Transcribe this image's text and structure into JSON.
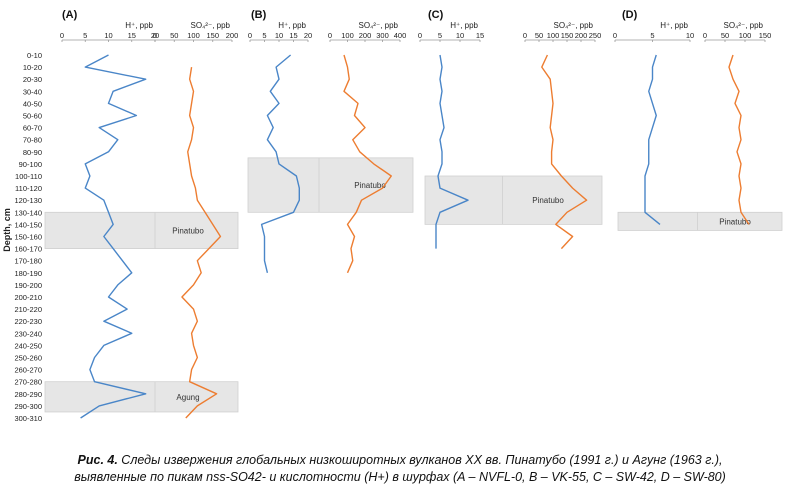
{
  "depth_axis": {
    "label": "Depth, cm",
    "ticks": [
      "0-10",
      "10-20",
      "20-30",
      "30-40",
      "40-50",
      "50-60",
      "60-70",
      "70-80",
      "80-90",
      "90-100",
      "100-110",
      "110-120",
      "120-130",
      "130-140",
      "140-150",
      "150-160",
      "160-170",
      "170-180",
      "180-190",
      "190-200",
      "200-210",
      "210-220",
      "220-230",
      "230-240",
      "240-250",
      "250-260",
      "260-270",
      "270-280",
      "280-290",
      "290-300",
      "300-310"
    ]
  },
  "colors": {
    "h_series": "#4a86c8",
    "so4_series": "#ed7d31",
    "band": "#e6e6e6",
    "axis": "#9a9a9a"
  },
  "caption": {
    "lead": "Рис. 4.",
    "line1_rest": " Следы извержения глобальных низкоширотных вулканов XX вв. Пинатубо (1991 г.) и Агунг (1963 г.),",
    "line2": "выявленные по пикам nss-SO42- и кислотности (H+) в шурфах (A – NVFL-0, B – VK-55, C – SW-42, D – SW-80)"
  },
  "chart_data": [
    {
      "panel": "(A)",
      "type": "line",
      "h": {
        "xlabel": "H⁺, ppb",
        "xlim": [
          0,
          20
        ],
        "ticks": [
          0,
          5,
          10,
          15,
          20
        ],
        "depth_index": [
          0,
          1,
          2,
          3,
          4,
          5,
          6,
          7,
          8,
          9,
          10,
          11,
          12,
          13,
          14,
          15,
          16,
          17,
          18,
          19,
          20,
          21,
          22,
          23,
          24,
          25,
          26,
          27,
          28,
          29,
          30
        ],
        "values": [
          10,
          5,
          18,
          11,
          10,
          16,
          8,
          12,
          10,
          5,
          6,
          5,
          9,
          10,
          11,
          9,
          11,
          13,
          15,
          12,
          10,
          14,
          9,
          15,
          9,
          7,
          6,
          7,
          18,
          8,
          4
        ]
      },
      "so4": {
        "xlabel": "SO₄²⁻, ppb",
        "xlim": [
          0,
          200
        ],
        "ticks": [
          0,
          50,
          100,
          150,
          200
        ],
        "depth_index": [
          1,
          2,
          3,
          4,
          5,
          6,
          7,
          8,
          9,
          10,
          11,
          12,
          13,
          14,
          15,
          16,
          17,
          18,
          19,
          20,
          21,
          22,
          23,
          24,
          25,
          26,
          27,
          28,
          29,
          30
        ],
        "values": [
          95,
          90,
          100,
          95,
          90,
          100,
          95,
          85,
          90,
          95,
          105,
          110,
          130,
          150,
          170,
          140,
          110,
          120,
          100,
          70,
          100,
          110,
          95,
          100,
          110,
          95,
          90,
          160,
          110,
          80
        ]
      },
      "bands": [
        {
          "label": "Pinatubo",
          "from": 13,
          "to": 16
        },
        {
          "label": "Agung",
          "from": 27,
          "to": 29.5
        }
      ]
    },
    {
      "panel": "(B)",
      "type": "line",
      "h": {
        "xlabel": "H⁺, ppb",
        "xlim": [
          0,
          20
        ],
        "ticks": [
          0,
          5,
          10,
          15,
          20
        ],
        "depth_index": [
          0,
          1,
          2,
          3,
          4,
          5,
          6,
          7,
          8,
          9,
          10,
          11,
          12,
          13,
          14,
          15,
          16,
          17,
          18
        ],
        "values": [
          14,
          9,
          10,
          7,
          10,
          6,
          8,
          6,
          9,
          10,
          16,
          17,
          17,
          15,
          4,
          5,
          5,
          5,
          6
        ]
      },
      "so4": {
        "xlabel": "SO₄²⁻, ppb",
        "xlim": [
          0,
          400
        ],
        "ticks": [
          0,
          100,
          200,
          300,
          400
        ],
        "depth_index": [
          0,
          1,
          2,
          3,
          4,
          5,
          6,
          7,
          8,
          9,
          10,
          11,
          12,
          13,
          14,
          15,
          16,
          17,
          18
        ],
        "values": [
          80,
          100,
          110,
          80,
          160,
          140,
          200,
          130,
          170,
          250,
          350,
          300,
          180,
          150,
          100,
          140,
          120,
          130,
          100
        ]
      },
      "bands": [
        {
          "label": "Pinatubo",
          "from": 8.5,
          "to": 13
        }
      ]
    },
    {
      "panel": "(C)",
      "type": "line",
      "h": {
        "xlabel": "H⁺, ppb",
        "xlim": [
          0,
          15
        ],
        "ticks": [
          0,
          5,
          10,
          15
        ],
        "depth_index": [
          0,
          1,
          2,
          3,
          4,
          5,
          6,
          7,
          8,
          9,
          10,
          11,
          12,
          13,
          14,
          15,
          16
        ],
        "values": [
          5,
          5.5,
          5,
          5.5,
          5,
          5.5,
          6,
          5,
          5.5,
          5.5,
          4.5,
          5,
          12,
          5,
          4,
          4,
          4
        ]
      },
      "so4": {
        "xlabel": "SO₄²⁻, ppb",
        "xlim": [
          0,
          250
        ],
        "ticks": [
          0,
          50,
          100,
          150,
          200,
          250
        ],
        "depth_index": [
          0,
          1,
          2,
          3,
          4,
          5,
          6,
          7,
          8,
          9,
          10,
          11,
          12,
          13,
          14,
          15,
          16
        ],
        "values": [
          80,
          60,
          90,
          95,
          100,
          95,
          90,
          100,
          95,
          95,
          130,
          170,
          220,
          150,
          110,
          170,
          130
        ]
      },
      "bands": [
        {
          "label": "Pinatubo",
          "from": 10,
          "to": 14
        }
      ]
    },
    {
      "panel": "(D)",
      "type": "line",
      "h": {
        "xlabel": "H⁺, ppb",
        "xlim": [
          0,
          10
        ],
        "ticks": [
          0,
          5,
          10
        ],
        "depth_index": [
          0,
          1,
          2,
          3,
          4,
          5,
          6,
          7,
          8,
          9,
          10,
          11,
          12,
          13,
          14
        ],
        "values": [
          5.5,
          5,
          5,
          4.5,
          5,
          5.5,
          5,
          4.5,
          4.5,
          4.5,
          4,
          4,
          4,
          4,
          6
        ]
      },
      "so4": {
        "xlabel": "SO₄²⁻, ppb",
        "xlim": [
          0,
          150
        ],
        "ticks": [
          0,
          50,
          100,
          150
        ],
        "depth_index": [
          0,
          1,
          2,
          3,
          4,
          5,
          6,
          7,
          8,
          9,
          10,
          11,
          12,
          13,
          14
        ],
        "values": [
          70,
          60,
          70,
          85,
          75,
          90,
          85,
          90,
          80,
          90,
          85,
          90,
          85,
          90,
          110
        ]
      },
      "bands": [
        {
          "label": "Pinatubo",
          "from": 13,
          "to": 14.5
        }
      ]
    }
  ]
}
